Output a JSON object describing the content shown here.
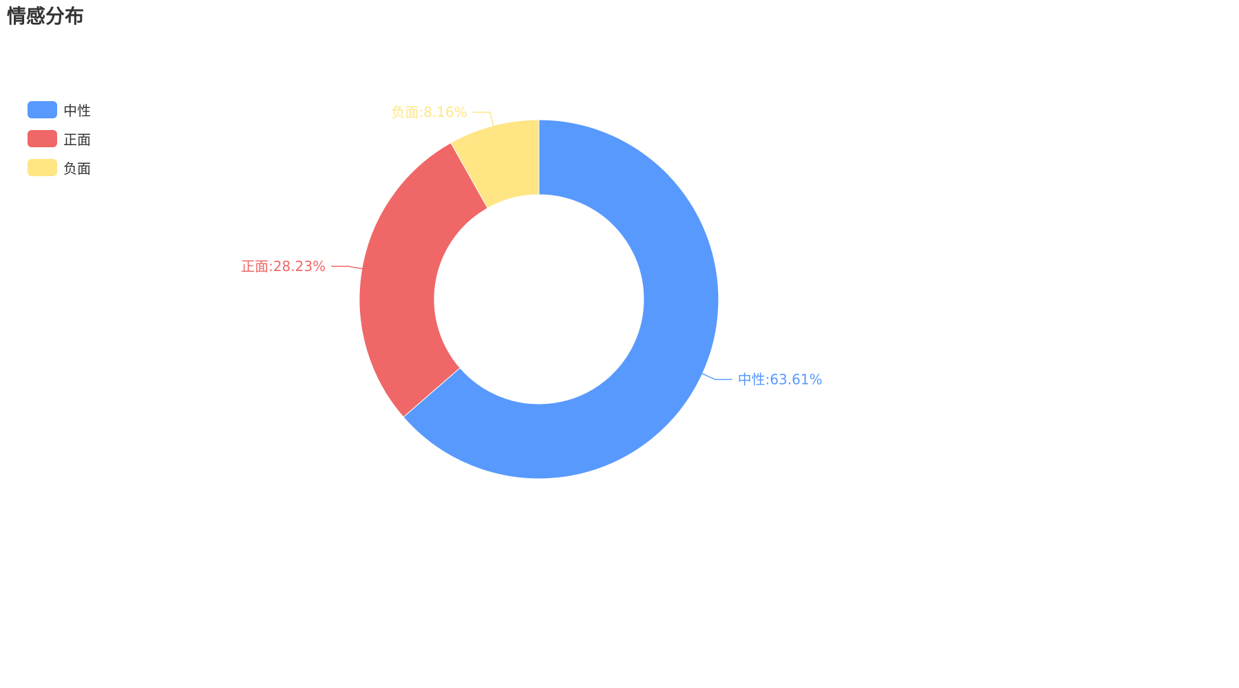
{
  "chart_data": {
    "type": "pie",
    "variant": "donut",
    "title": "情感分布",
    "legend_position": "top-left",
    "slices": [
      {
        "name": "中性",
        "value": 63.61,
        "label": "中性:63.61%",
        "color": "#5899fd"
      },
      {
        "name": "正面",
        "value": 28.23,
        "label": "正面:28.23%",
        "color": "#ef6767"
      },
      {
        "name": "负面",
        "value": 8.16,
        "label": "负面:8.16%",
        "color": "#ffe584"
      }
    ]
  }
}
